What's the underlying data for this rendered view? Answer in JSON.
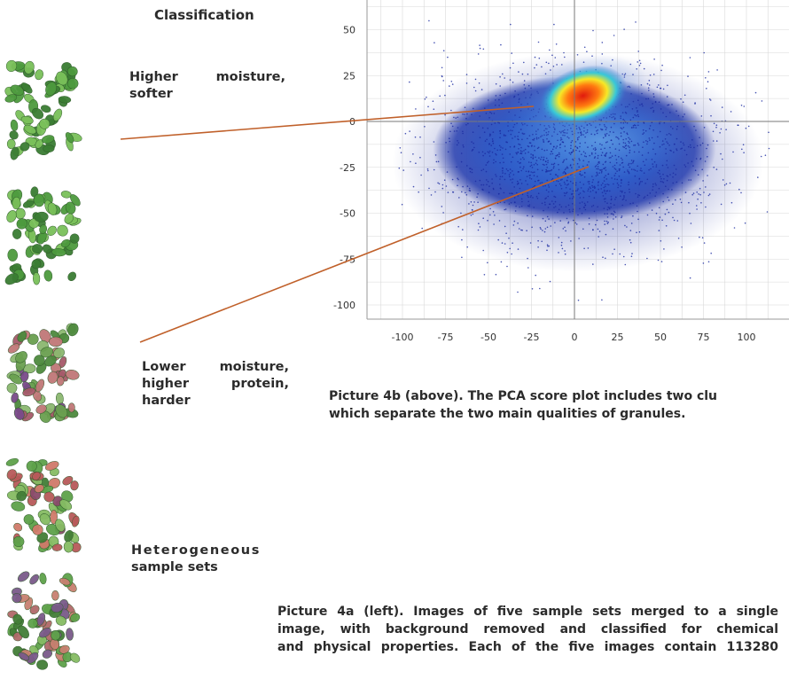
{
  "heading": "Classification",
  "labels": {
    "softer": "Higher moisture, softer",
    "harder": "Lower moisture, higher protein, harder",
    "heterogeneous_1": "Heterogeneous",
    "heterogeneous_2": "sample sets"
  },
  "captions": {
    "picture_4b": "Picture 4b (above). The PCA score plot includes two clu",
    "picture_4b_2": "which separate the two main qualities of granules.",
    "picture_4a_1": "Picture 4a (left). Images of five sample sets merged to a single",
    "picture_4a_2": "image, with background removed and classified for chemical",
    "picture_4a_3": "and physical properties. Each of the five images contain 113280"
  },
  "sample_images": [
    {
      "name": "sample-set-1",
      "tint": "green"
    },
    {
      "name": "sample-set-2",
      "tint": "green"
    },
    {
      "name": "sample-set-3",
      "tint": "red-purple"
    },
    {
      "name": "sample-set-4",
      "tint": "mixed"
    },
    {
      "name": "sample-set-5",
      "tint": "mixed-green"
    }
  ],
  "colors": {
    "leader_line": "#c0602a",
    "density_low": "#1a2aa0",
    "density_high": "#e02010",
    "grid": "#d8d8d8"
  },
  "chart_data": {
    "type": "scatter",
    "title": "",
    "xlabel": "",
    "ylabel": "",
    "xlim": [
      -122,
      122
    ],
    "ylim": [
      -111,
      64
    ],
    "x_ticks": [
      -100,
      -75,
      -50,
      -25,
      0,
      25,
      50,
      75,
      100
    ],
    "y_ticks": [
      50,
      25,
      0,
      -25,
      -50,
      -75,
      -100
    ],
    "grid": true,
    "clusters": [
      {
        "center": [
          5,
          14
        ],
        "spread": [
          12,
          6
        ],
        "note": "dense high-moisture cluster"
      },
      {
        "center": [
          0,
          -15
        ],
        "spread": [
          35,
          20
        ],
        "note": "broad lower-moisture cluster"
      }
    ],
    "point_extent_x": [
      -105,
      115
    ],
    "point_extent_y": [
      -100,
      55
    ],
    "color_scale": "density (blue → cyan → yellow → red)"
  }
}
